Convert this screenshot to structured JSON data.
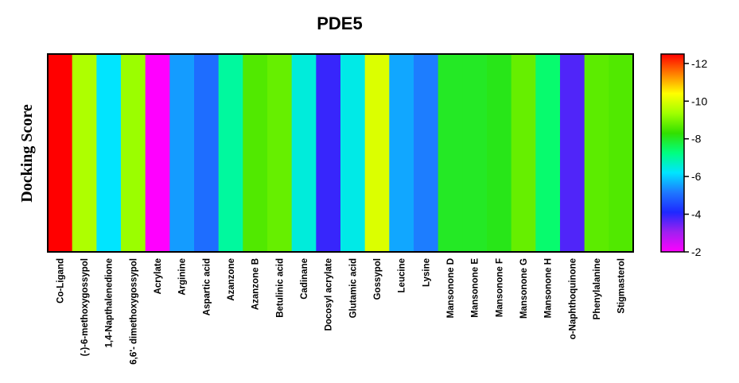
{
  "chart_data": {
    "type": "heatmap",
    "title": "PDE5",
    "ylabel": "Docking Score",
    "xlabel": "",
    "categories": [
      "Co-Ligand",
      "(-)-6-methoxygossypol",
      "1,4-Napthalenedione",
      "6,6'- dimethoxygossypol",
      "Acrylate",
      "Arginine",
      "Aspartic acid",
      "Azanzone",
      "Azanzone B",
      "Betulinic acid",
      "Cadinane",
      "Docosyl acrylate",
      "Glutamic acid",
      "Gossypol",
      "Leucine",
      "Lysine",
      "Mansonone D",
      "Mansonone E",
      "Mansonone F",
      "Mansonone G",
      "Mansonone H",
      "o-Naphthoquinone",
      "Phenylalanine",
      "Stigmasterol"
    ],
    "values": [
      -12.5,
      -9.5,
      -6.2,
      -9.3,
      -2.0,
      -5.5,
      -5.0,
      -7.0,
      -8.6,
      -8.8,
      -6.5,
      -3.9,
      -6.4,
      -10.0,
      -5.6,
      -5.2,
      -8.0,
      -8.0,
      -8.1,
      -8.8,
      -7.4,
      -3.7,
      -8.7,
      -8.6
    ],
    "colorbar": {
      "range": [
        -2,
        -12.5
      ],
      "ticks": [
        "-12",
        "-10",
        "-8",
        "-6",
        "-4",
        "-2"
      ],
      "tick_values": [
        -12,
        -10,
        -8,
        -6,
        -4,
        -2
      ],
      "colors": [
        "#ff00ff",
        "#a020f0",
        "#1e28ff",
        "#1e78ff",
        "#00e5ff",
        "#00ff80",
        "#32e000",
        "#a0ff00",
        "#ffff00",
        "#ff8000",
        "#ff0000"
      ],
      "position": "right"
    },
    "grid": false
  }
}
